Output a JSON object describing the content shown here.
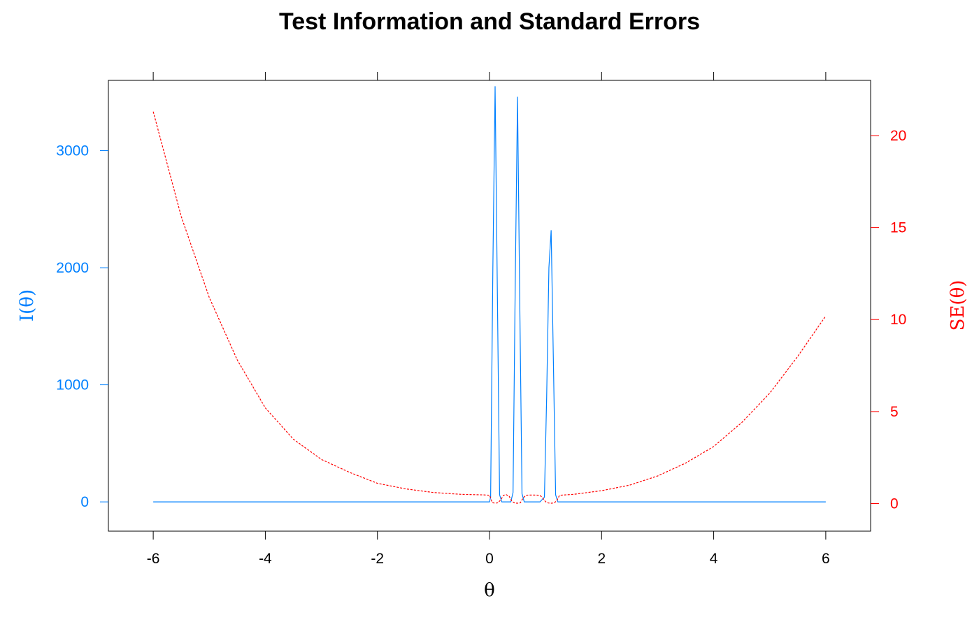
{
  "chart_data": {
    "type": "line",
    "title": "Test Information and Standard Errors",
    "xlabel": "θ",
    "ylabel_left": "I(θ)",
    "ylabel_right": "SE(θ)",
    "xlim": [
      -6.8,
      6.8
    ],
    "ylim_left": [
      -250,
      3600
    ],
    "ylim_right": [
      -1.5,
      23
    ],
    "x_ticks": [
      -6,
      -4,
      -2,
      0,
      2,
      4,
      6
    ],
    "y_left_ticks": [
      0,
      1000,
      2000,
      3000
    ],
    "y_right_ticks": [
      0,
      5,
      10,
      15,
      20
    ],
    "grid": false,
    "colors": {
      "information": "#0080ff",
      "se": "#ff0000",
      "axis": "#000000"
    },
    "series": [
      {
        "name": "I(θ)",
        "axis": "left",
        "style": "solid",
        "x": [
          -6,
          0.0,
          0.02,
          0.06,
          0.1,
          0.14,
          0.18,
          0.22,
          0.3,
          0.38,
          0.42,
          0.46,
          0.5,
          0.54,
          0.58,
          0.62,
          0.7,
          0.9,
          0.98,
          1.02,
          1.06,
          1.1,
          1.14,
          1.18,
          1.22,
          6
        ],
        "values": [
          0,
          0,
          40,
          2000,
          3550,
          1800,
          60,
          0,
          0,
          0,
          80,
          1900,
          3460,
          1700,
          70,
          0,
          0,
          0,
          40,
          900,
          2000,
          2320,
          1200,
          60,
          0,
          0
        ]
      },
      {
        "name": "SE(θ)",
        "axis": "right",
        "style": "dashed",
        "x": [
          -6,
          -5.5,
          -5,
          -4.5,
          -4,
          -3.5,
          -3,
          -2.5,
          -2,
          -1.5,
          -1,
          -0.5,
          -0.1,
          0.0,
          0.02,
          0.05,
          0.1,
          0.15,
          0.2,
          0.25,
          0.3,
          0.35,
          0.4,
          0.45,
          0.5,
          0.55,
          0.6,
          0.65,
          0.7,
          0.8,
          0.9,
          0.95,
          1.0,
          1.05,
          1.1,
          1.15,
          1.2,
          1.25,
          1.5,
          2,
          2.5,
          3,
          3.5,
          4,
          4.5,
          5,
          5.5,
          6
        ],
        "values": [
          21.3,
          15.6,
          11.2,
          7.8,
          5.2,
          3.5,
          2.4,
          1.7,
          1.1,
          0.8,
          0.6,
          0.5,
          0.47,
          0.45,
          0.3,
          0.05,
          0.02,
          0.04,
          0.2,
          0.45,
          0.48,
          0.4,
          0.12,
          0.03,
          0.02,
          0.04,
          0.3,
          0.45,
          0.46,
          0.46,
          0.45,
          0.3,
          0.1,
          0.03,
          0.02,
          0.03,
          0.15,
          0.45,
          0.5,
          0.7,
          1.0,
          1.5,
          2.2,
          3.1,
          4.4,
          6.0,
          8.0,
          10.2
        ]
      }
    ]
  }
}
